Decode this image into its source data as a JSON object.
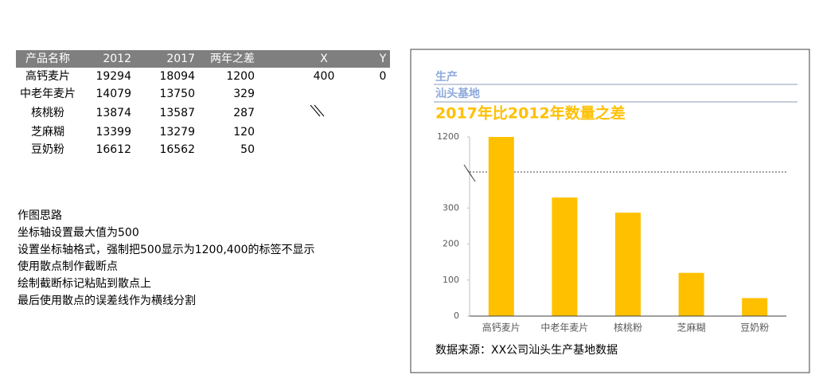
{
  "table": {
    "header": [
      "产品名称",
      "2012",
      "2017",
      "两年之差",
      "X",
      "Y"
    ],
    "rows": [
      [
        "高钙麦片",
        19294,
        18094,
        1200,
        400,
        0
      ],
      [
        "中老年麦片",
        14079,
        13750,
        329
      ],
      [
        "核桃粉",
        13874,
        13587,
        287
      ],
      [
        "芝麻糊",
        13399,
        13279,
        120
      ],
      [
        "豆奶粉",
        16612,
        16562,
        50
      ]
    ]
  },
  "notes": [
    "作图思路",
    "坐标轴设置最大值为500",
    "设置坐标轴格式，强制把500显示为1200,400的标签不显示",
    "使用散点制作截断点",
    "绘制截断标记粘贴到散点上",
    "最后使用散点的误差线作为横线分割"
  ],
  "chart_data": {
    "type": "bar",
    "header": [
      "生产",
      "汕头基地"
    ],
    "title": "2017年比2012年数量之差",
    "categories": [
      "高钙麦片",
      "中老年麦片",
      "核桃粉",
      "芝麻糊",
      "豆奶粉"
    ],
    "values": [
      1200,
      329,
      287,
      120,
      50
    ],
    "color": "#ffc000",
    "ylim": [
      0,
      1200
    ],
    "yticks": [
      0,
      100,
      200,
      300,
      1200
    ],
    "axis_break": true,
    "source": "数据来源：XX公司汕头生产基地数据"
  }
}
